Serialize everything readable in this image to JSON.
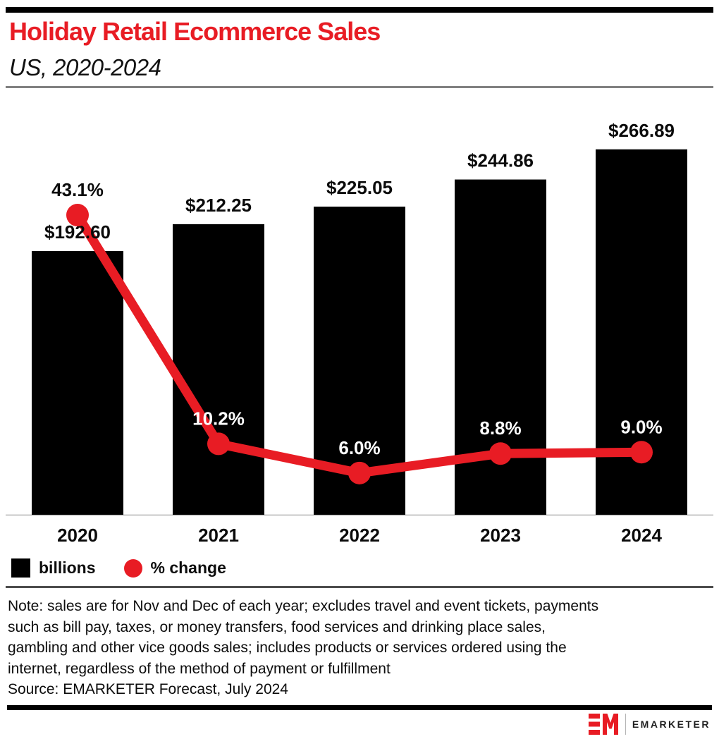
{
  "chart_data": {
    "type": "bar",
    "title": "Holiday Retail Ecommerce Sales",
    "subtitle": "US, 2020-2024",
    "categories": [
      "2020",
      "2021",
      "2022",
      "2023",
      "2024"
    ],
    "series": [
      {
        "name": "billions",
        "type": "bar",
        "color": "#000000",
        "values": [
          192.6,
          212.25,
          225.05,
          244.86,
          266.89
        ],
        "labels": [
          "$192.60",
          "$212.25",
          "$225.05",
          "$244.86",
          "$266.89"
        ]
      },
      {
        "name": "% change",
        "type": "line",
        "color": "#e81c24",
        "values": [
          43.1,
          10.2,
          6.0,
          8.8,
          9.0
        ],
        "labels": [
          "43.1%",
          "10.2%",
          "6.0%",
          "8.8%",
          "9.0%"
        ]
      }
    ],
    "bar_axis_range": [
      0,
      300
    ],
    "pct_axis_range": [
      0,
      60
    ],
    "grid": false,
    "legend_position": "bottom-left"
  },
  "colors": {
    "accent_red": "#e81c24",
    "bar_black": "#000000",
    "axis_line": "#c8c8c8"
  },
  "note": {
    "lines": [
      "Note: sales are for Nov and Dec of each year; excludes travel and event tickets, payments",
      "such as bill pay, taxes, or money transfers, food services and drinking place sales,",
      "gambling and other vice goods sales; includes products or services ordered using the",
      "internet, regardless of the method of payment or fulfillment"
    ],
    "source": "Source: EMARKETER Forecast, July 2024"
  },
  "footer": {
    "logo_text": "EMARKETER"
  }
}
